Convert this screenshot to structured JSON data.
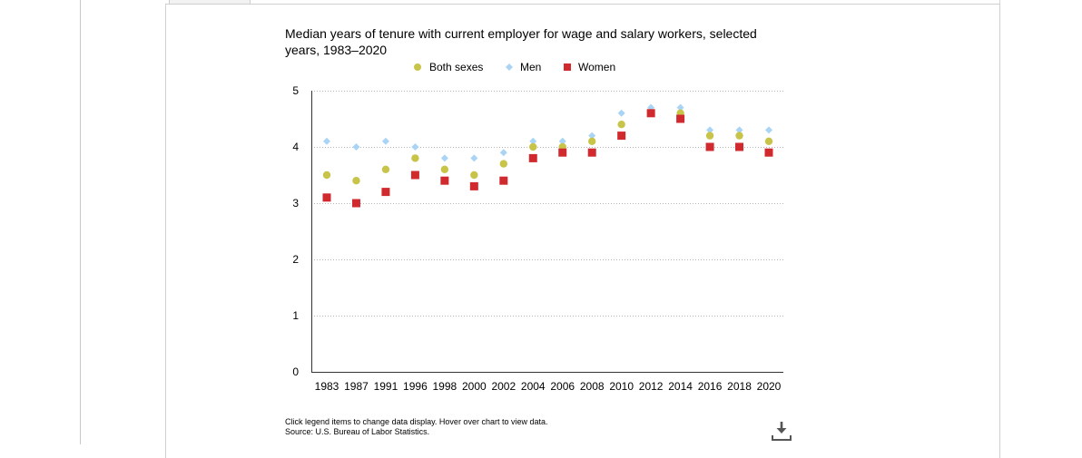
{
  "chart_data": {
    "type": "scatter",
    "title": "Median years of tenure with current employer for wage and salary workers, selected years, 1983–2020",
    "categories": [
      "1983",
      "1987",
      "1991",
      "1996",
      "1998",
      "2000",
      "2002",
      "2004",
      "2006",
      "2008",
      "2010",
      "2012",
      "2014",
      "2016",
      "2018",
      "2020"
    ],
    "series": [
      {
        "name": "Both sexes",
        "color": "#c8c44a",
        "marker": "circle",
        "values": [
          3.5,
          3.4,
          3.6,
          3.8,
          3.6,
          3.5,
          3.7,
          4.0,
          4.0,
          4.1,
          4.4,
          4.6,
          4.6,
          4.2,
          4.2,
          4.1
        ]
      },
      {
        "name": "Men",
        "color": "#a9d4f5",
        "marker": "diamond",
        "values": [
          4.1,
          4.0,
          4.1,
          4.0,
          3.8,
          3.8,
          3.9,
          4.1,
          4.1,
          4.2,
          4.6,
          4.7,
          4.7,
          4.3,
          4.3,
          4.3
        ]
      },
      {
        "name": "Women",
        "color": "#d02a2e",
        "marker": "square",
        "values": [
          3.1,
          3.0,
          3.2,
          3.5,
          3.4,
          3.3,
          3.4,
          3.8,
          3.9,
          3.9,
          4.2,
          4.6,
          4.5,
          4.0,
          4.0,
          3.9
        ]
      }
    ],
    "yticks": [
      "0",
      "1",
      "2",
      "3",
      "4",
      "5"
    ],
    "ylim": [
      0,
      5
    ],
    "xlabel": "",
    "ylabel": "",
    "grid": true,
    "legend_position": "top"
  },
  "footnote": {
    "line1": "Click legend items to change data display. Hover over chart to view data.",
    "line2": "Source: U.S. Bureau of Labor Statistics."
  },
  "icons": {
    "download": "download-icon"
  }
}
